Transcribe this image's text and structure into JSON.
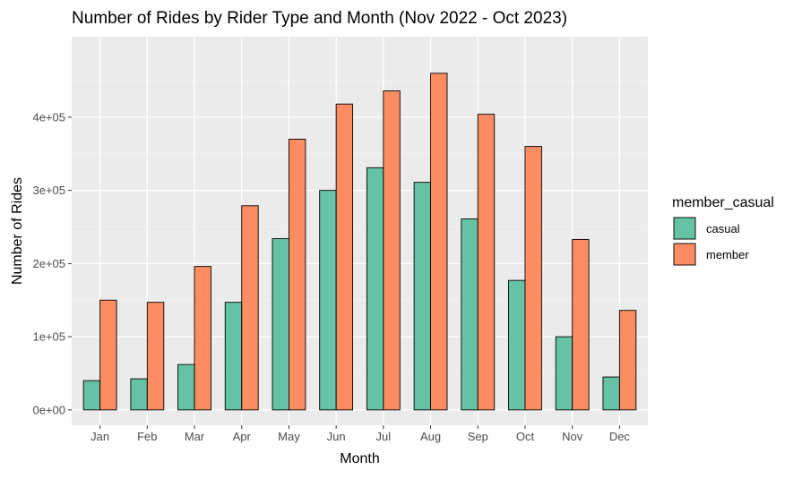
{
  "chart_data": {
    "type": "bar",
    "title": "Number of Rides by Rider Type and Month (Nov 2022 - Oct 2023)",
    "xlabel": "Month",
    "ylabel": "Number of Rides",
    "categories": [
      "Jan",
      "Feb",
      "Mar",
      "Apr",
      "May",
      "Jun",
      "Jul",
      "Aug",
      "Sep",
      "Oct",
      "Nov",
      "Dec"
    ],
    "series": [
      {
        "name": "casual",
        "color": "#66C2A5",
        "values": [
          40000,
          42500,
          62000,
          147000,
          234000,
          300000,
          331000,
          311000,
          261000,
          177000,
          100000,
          45000
        ]
      },
      {
        "name": "member",
        "color": "#FC8D62",
        "values": [
          150000,
          147000,
          196000,
          279000,
          370000,
          418000,
          436000,
          460000,
          404000,
          360000,
          233000,
          136000
        ]
      }
    ],
    "ylim": [
      -21000,
      510000
    ],
    "yticks": [
      0,
      100000,
      200000,
      300000,
      400000
    ],
    "ytick_labels": [
      "0e+00",
      "1e+05",
      "2e+05",
      "3e+05",
      "4e+05"
    ],
    "legend": {
      "title": "member_casual",
      "position": "right"
    },
    "grid": true,
    "panel_background": "#EBEBEB"
  }
}
